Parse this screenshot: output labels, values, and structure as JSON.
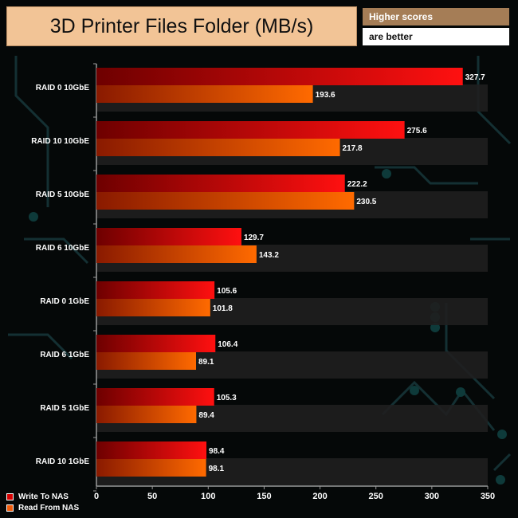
{
  "header": {
    "title": "3D Printer Files Folder (MB/s)",
    "note_line1": "Higher scores",
    "note_line2": "are better"
  },
  "legend": {
    "items": [
      {
        "label": "Write To NAS",
        "color": "#d60000"
      },
      {
        "label": "Read From NAS",
        "color": "#f05a0a"
      }
    ]
  },
  "chart_data": {
    "type": "bar",
    "orientation": "horizontal",
    "title": "3D Printer Files Folder (MB/s)",
    "categories": [
      "RAID 0 10GbE",
      "RAID 10 10GbE",
      "RAID 5 10GbE",
      "RAID 6 10GbE",
      "RAID 0 1GbE",
      "RAID 6 1GbE",
      "RAID 5 1GbE",
      "RAID 10 1GbE"
    ],
    "series": [
      {
        "name": "Write To NAS",
        "values": [
          327.7,
          275.6,
          222.2,
          129.7,
          105.6,
          106.4,
          105.3,
          98.4
        ]
      },
      {
        "name": "Read From NAS",
        "values": [
          193.6,
          217.8,
          230.5,
          143.2,
          101.8,
          89.1,
          89.4,
          98.1
        ]
      }
    ],
    "xlim": [
      0,
      350
    ],
    "xticks": [
      0,
      50,
      100,
      150,
      200,
      250,
      300,
      350
    ],
    "legend_position": "bottom-left",
    "annotation": "Higher scores are better"
  }
}
